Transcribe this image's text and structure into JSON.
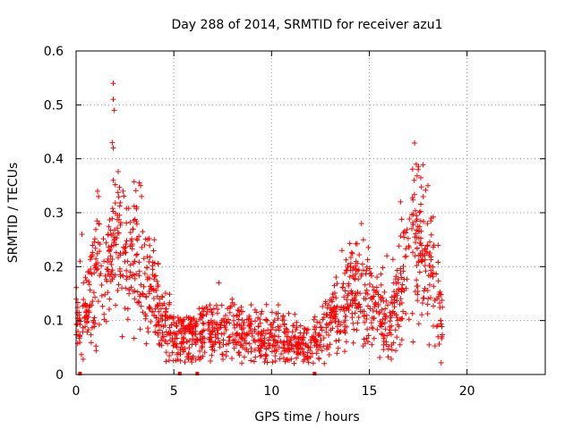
{
  "chart_data": {
    "type": "scatter",
    "title": "Day 288 of 2014, SRMTID for receiver azu1",
    "xlabel": "GPS time / hours",
    "ylabel": "SRMTID / TECUs",
    "xlim": [
      0,
      24
    ],
    "ylim": [
      0,
      0.6
    ],
    "x_ticks": [
      0,
      5,
      10,
      15,
      20
    ],
    "y_ticks": [
      0,
      0.1,
      0.2,
      0.3,
      0.4,
      0.5,
      0.6
    ],
    "x_tick_labels": [
      "0",
      "5",
      "10",
      "15",
      "20"
    ],
    "y_tick_labels": [
      "0",
      "0.1",
      "0.2",
      "0.3",
      "0.4",
      "0.5",
      "0.6"
    ],
    "grid": true,
    "marker": "+",
    "color": "#ff0000",
    "trend": [
      {
        "x": 0.0,
        "y": 0.1
      },
      {
        "x": 0.3,
        "y": 0.09
      },
      {
        "x": 0.6,
        "y": 0.13
      },
      {
        "x": 1.0,
        "y": 0.2
      },
      {
        "x": 1.3,
        "y": 0.22
      },
      {
        "x": 1.6,
        "y": 0.2
      },
      {
        "x": 1.9,
        "y": 0.26
      },
      {
        "x": 2.2,
        "y": 0.25
      },
      {
        "x": 2.6,
        "y": 0.2
      },
      {
        "x": 3.0,
        "y": 0.22
      },
      {
        "x": 3.4,
        "y": 0.2
      },
      {
        "x": 3.9,
        "y": 0.16
      },
      {
        "x": 4.3,
        "y": 0.11
      },
      {
        "x": 5.0,
        "y": 0.075
      },
      {
        "x": 6.0,
        "y": 0.07
      },
      {
        "x": 7.0,
        "y": 0.08
      },
      {
        "x": 8.0,
        "y": 0.08
      },
      {
        "x": 9.0,
        "y": 0.07
      },
      {
        "x": 10.0,
        "y": 0.075
      },
      {
        "x": 11.0,
        "y": 0.065
      },
      {
        "x": 11.8,
        "y": 0.05
      },
      {
        "x": 12.5,
        "y": 0.07
      },
      {
        "x": 13.0,
        "y": 0.1
      },
      {
        "x": 13.5,
        "y": 0.12
      },
      {
        "x": 14.0,
        "y": 0.15
      },
      {
        "x": 14.5,
        "y": 0.16
      },
      {
        "x": 15.0,
        "y": 0.14
      },
      {
        "x": 15.5,
        "y": 0.12
      },
      {
        "x": 16.0,
        "y": 0.1
      },
      {
        "x": 16.5,
        "y": 0.15
      },
      {
        "x": 17.0,
        "y": 0.22
      },
      {
        "x": 17.5,
        "y": 0.26
      },
      {
        "x": 18.0,
        "y": 0.2
      },
      {
        "x": 18.5,
        "y": 0.14
      },
      {
        "x": 18.7,
        "y": 0.1
      }
    ],
    "spikes": [
      {
        "x": 1.9,
        "y": 0.54
      },
      {
        "x": 1.9,
        "y": 0.51
      },
      {
        "x": 1.95,
        "y": 0.49
      },
      {
        "x": 1.85,
        "y": 0.43
      },
      {
        "x": 1.9,
        "y": 0.42
      },
      {
        "x": 1.9,
        "y": 0.36
      },
      {
        "x": 1.1,
        "y": 0.34
      },
      {
        "x": 1.15,
        "y": 0.33
      },
      {
        "x": 2.4,
        "y": 0.34
      },
      {
        "x": 3.3,
        "y": 0.35
      },
      {
        "x": 3.35,
        "y": 0.33
      },
      {
        "x": 17.4,
        "y": 0.39
      },
      {
        "x": 17.5,
        "y": 0.38
      },
      {
        "x": 17.3,
        "y": 0.36
      },
      {
        "x": 18.0,
        "y": 0.35
      },
      {
        "x": 14.6,
        "y": 0.28
      },
      {
        "x": 14.7,
        "y": 0.25
      },
      {
        "x": 16.6,
        "y": 0.32
      },
      {
        "x": 7.3,
        "y": 0.17
      },
      {
        "x": 13.6,
        "y": 0.23
      },
      {
        "x": 15.9,
        "y": 0.22
      },
      {
        "x": 0.3,
        "y": 0.26
      },
      {
        "x": 0.2,
        "y": 0.21
      },
      {
        "x": 4.0,
        "y": 0.25
      },
      {
        "x": 2.9,
        "y": 0.27
      },
      {
        "x": 18.3,
        "y": 0.24
      }
    ],
    "zeros": [
      0.2,
      5.3,
      6.2,
      12.2
    ]
  }
}
